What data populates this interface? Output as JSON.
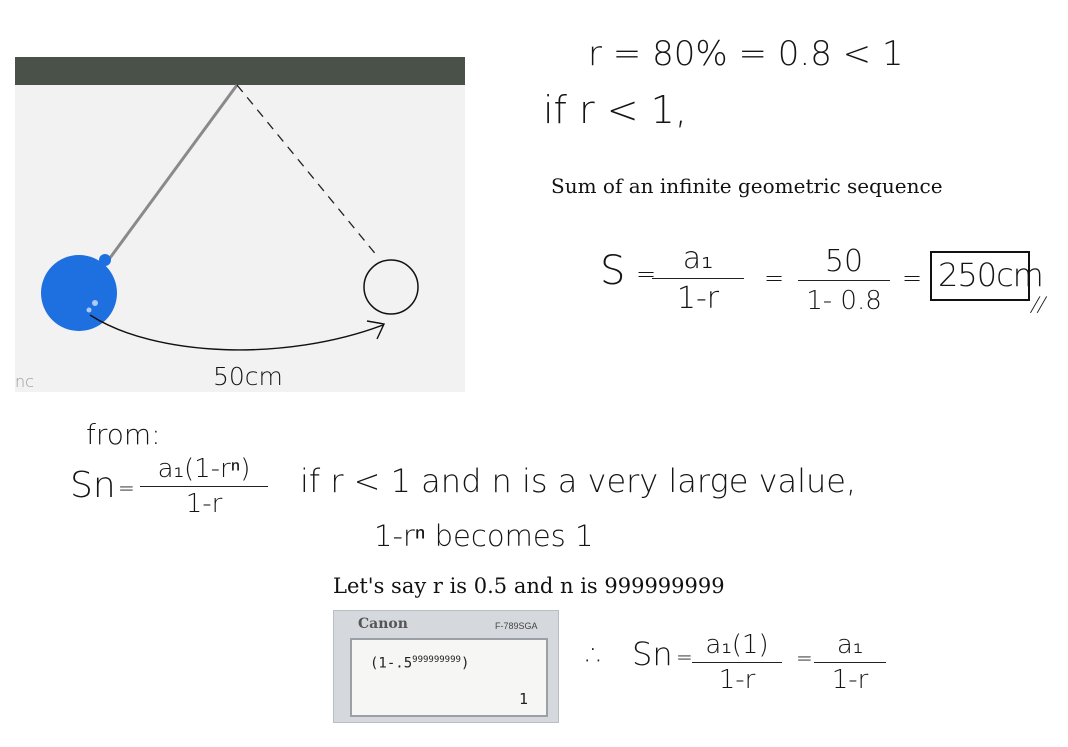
{
  "ratio_line": "r = 80% = 0.8 < 1",
  "condition_line": "if r < 1,",
  "sum_title": "Sum of an infinite geometric sequence",
  "sum_formula": {
    "lhs": "S",
    "num1": "a₁",
    "den1": "1-r",
    "num2": "50",
    "den2": "1- 0.8",
    "eq": "=",
    "answer": "250cm",
    "end_mark": "//"
  },
  "pendulum": {
    "distance_label": "50cm",
    "corner_text": "nc",
    "colors": {
      "bar": "#4a5148",
      "ball": "#1e6fe0",
      "panel": "#f2f2f2"
    }
  },
  "from_label": "from:",
  "sn_formula": {
    "lhs": "Sn",
    "eq": "=",
    "num": "a₁(1-rⁿ)",
    "den": "1-r"
  },
  "explanation_line": "if r < 1 and n is a very large value,",
  "becomes_line": "1-rⁿ becomes 1",
  "example_line": "Let's say r is 0.5 and n is 999999999",
  "calculator": {
    "brand": "Canon",
    "model": "F-789SGA",
    "expression_base": "(1-.5",
    "expression_exp": "999999999",
    "expression_close": ")",
    "result": "1"
  },
  "conclusion": {
    "therefore": "∴",
    "lhs": "Sn",
    "eq": "=",
    "num1": "a₁(1)",
    "den1": "1-r",
    "num2": "a₁",
    "den2": "1-r"
  }
}
